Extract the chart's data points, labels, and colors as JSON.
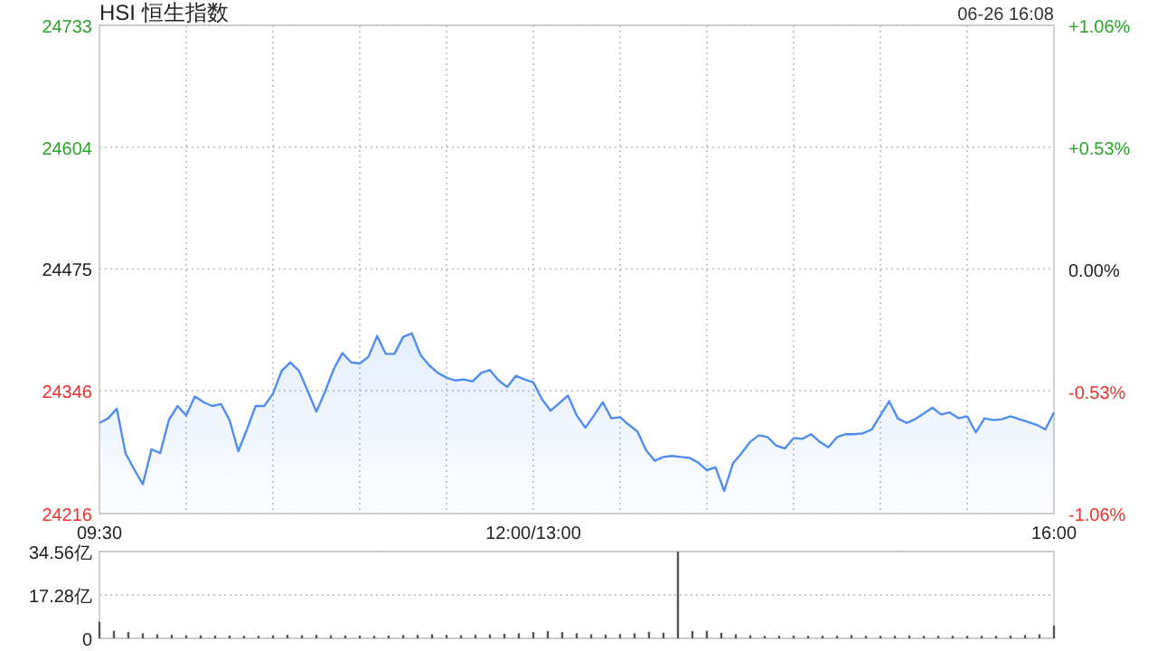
{
  "chart_data": [
    {
      "type": "area",
      "title": "HSI 恒生指数",
      "annotations": [
        "06-26 16:08"
      ],
      "categories": [
        "09:30",
        null,
        null,
        null,
        null,
        null,
        null,
        null,
        null,
        null,
        null,
        null,
        null,
        null,
        null,
        null,
        null,
        null,
        null,
        null,
        null,
        null,
        null,
        null,
        null,
        null,
        null,
        null,
        null,
        null,
        null,
        null,
        null,
        null,
        null,
        null,
        null,
        null,
        null,
        null,
        null,
        null,
        null,
        null,
        null,
        null,
        null,
        null,
        null,
        null,
        "12:00/13:00",
        null,
        null,
        null,
        null,
        null,
        null,
        null,
        null,
        null,
        null,
        null,
        null,
        null,
        null,
        null,
        null,
        null,
        null,
        null,
        null,
        null,
        null,
        null,
        null,
        null,
        null,
        null,
        null,
        null,
        null,
        null,
        null,
        null,
        null,
        null,
        null,
        null,
        null,
        null,
        null,
        null,
        null,
        null,
        null,
        null,
        null,
        null,
        null,
        null,
        null,
        null,
        null,
        null,
        null,
        null,
        null,
        null,
        null,
        null,
        "16:00"
      ],
      "ylim": [
        24216,
        24733
      ],
      "yticks": [
        24216,
        24346,
        24475,
        24604,
        24733
      ],
      "y2lim": [
        -1.06,
        1.06
      ],
      "y2ticks": [
        {
          "value": -1.06,
          "label": "-1.06%"
        },
        {
          "value": -0.53,
          "label": "-0.53%"
        },
        {
          "value": 0,
          "label": "0.00%"
        },
        {
          "value": 0.53,
          "label": "+0.53%"
        },
        {
          "value": 1.06,
          "label": "+1.06%"
        }
      ],
      "grid": true,
      "series": [
        {
          "color": "#4f8ef0",
          "values": [
            24312,
            24317,
            24327,
            24280,
            24263,
            24247,
            24284,
            24280,
            24315,
            24330,
            24320,
            24340,
            24334,
            24330,
            24332,
            24315,
            24282,
            24305,
            24330,
            24330,
            24343,
            24367,
            24376,
            24367,
            24346,
            24324,
            24345,
            24369,
            24386,
            24376,
            24375,
            24382,
            24404,
            24385,
            24385,
            24403,
            24407,
            24384,
            24373,
            24365,
            24360,
            24357,
            24358,
            24356,
            24365,
            24368,
            24357,
            24350,
            24362,
            24358,
            24355,
            24337,
            24325,
            24333,
            24341,
            24320,
            24307,
            24320,
            24334,
            24317,
            24318,
            24310,
            24303,
            24283,
            24272,
            24276,
            24277,
            24276,
            24275,
            24270,
            24262,
            24265,
            24240,
            24269,
            24280,
            24292,
            24299,
            24297,
            24288,
            24285,
            24296,
            24295,
            24300,
            24292,
            24286,
            24297,
            24300,
            24300,
            24301,
            24305,
            24320,
            24335,
            24317,
            24312,
            24316,
            24322,
            24328,
            24321,
            24323,
            24317,
            24319,
            24302,
            24317,
            24315,
            24316,
            24319,
            24316,
            24313,
            24310,
            24305,
            24323
          ]
        }
      ]
    },
    {
      "type": "bar",
      "categories": [
        null,
        null,
        null,
        null,
        null,
        null,
        null,
        null,
        null,
        null,
        null,
        null,
        null,
        null,
        null,
        null,
        null,
        null,
        null,
        null,
        null,
        null,
        null,
        null,
        null,
        null,
        null,
        null,
        null,
        null,
        null,
        null,
        null,
        null,
        null,
        null,
        null,
        null,
        null,
        null,
        null,
        null,
        null,
        null,
        null,
        null,
        null,
        null,
        null,
        null,
        null,
        null,
        null,
        null,
        null,
        null,
        null,
        null,
        null,
        null,
        null,
        null,
        null,
        null,
        null,
        null,
        null
      ],
      "ylim": [
        0,
        34.56
      ],
      "yticks": [
        0,
        {
          "value": 17.28,
          "label": "17.28亿"
        },
        {
          "value": 34.56,
          "label": "34.56亿"
        }
      ],
      "grid": "y",
      "tick_labels": "y",
      "series": [
        {
          "color": "#555555",
          "values": [
            6.6,
            3,
            2.5,
            2,
            1.6,
            1.4,
            1.2,
            1.2,
            1.1,
            1.1,
            1,
            1,
            1.2,
            1.4,
            1.2,
            1.4,
            1.2,
            1.1,
            1.1,
            1,
            1.1,
            1.3,
            1.4,
            1.6,
            1.4,
            1.2,
            1.4,
            1.6,
            1.8,
            2,
            2.5,
            2.9,
            2.5,
            2,
            1.6,
            1.5,
            1.7,
            2,
            2.6,
            2.2,
            34.5,
            2.9,
            3,
            2.2,
            1.6,
            1.2,
            1,
            1,
            1.1,
            1,
            1,
            1,
            1.3,
            1,
            1,
            1,
            1.1,
            1,
            1,
            1,
            1,
            1,
            1,
            1.1,
            1.3,
            1.6,
            5
          ]
        }
      ]
    }
  ]
}
